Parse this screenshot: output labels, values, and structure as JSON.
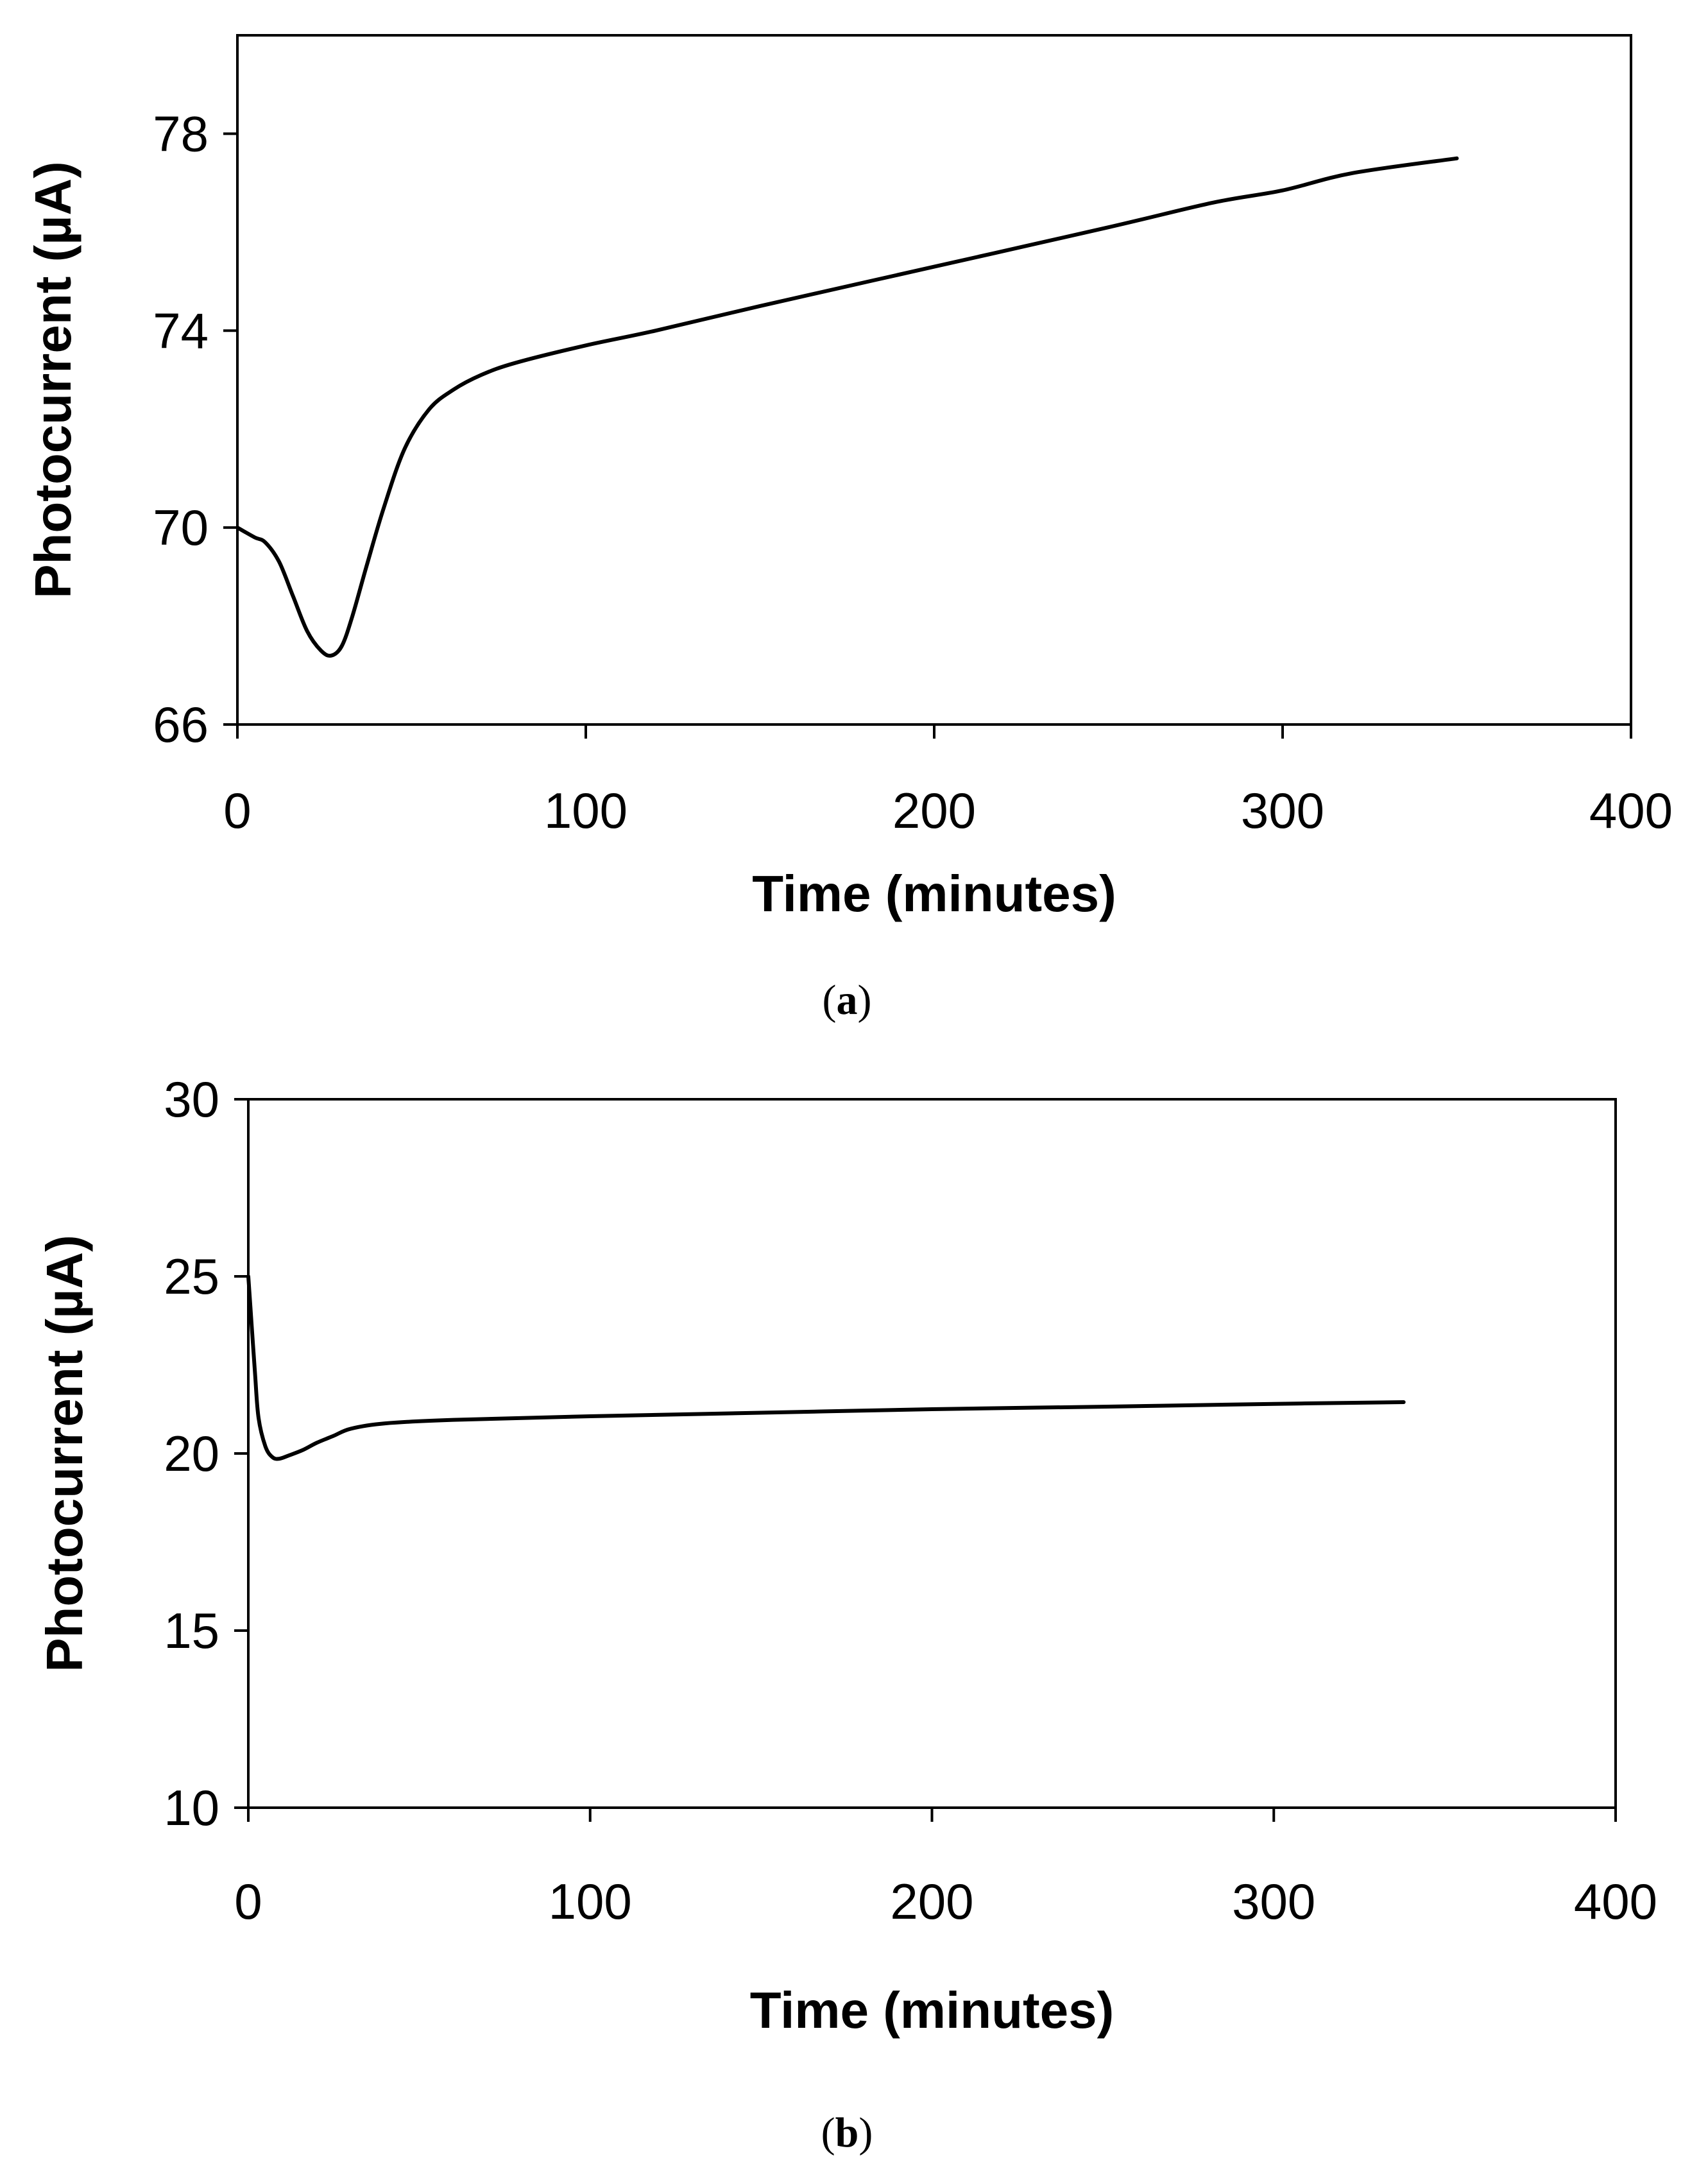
{
  "chart_data": [
    {
      "type": "line",
      "panel": "a",
      "title": "",
      "xlabel": "Time (minutes)",
      "ylabel": "Photocurrent (µA)",
      "xlim": [
        0,
        400
      ],
      "ylim": [
        66,
        80
      ],
      "x_ticks": [
        0,
        100,
        200,
        300,
        400
      ],
      "y_ticks": [
        66,
        70,
        74,
        78
      ],
      "grid": false,
      "series": [
        {
          "name": "photocurrent",
          "x": [
            0,
            5,
            8,
            12,
            16,
            20,
            24,
            27,
            30,
            33,
            37,
            42,
            48,
            55,
            62,
            70,
            80,
            100,
            120,
            150,
            200,
            250,
            280,
            300,
            320,
            350
          ],
          "y": [
            70.0,
            69.8,
            69.7,
            69.3,
            68.6,
            67.9,
            67.5,
            67.4,
            67.6,
            68.2,
            69.2,
            70.4,
            71.6,
            72.4,
            72.8,
            73.1,
            73.35,
            73.7,
            74.0,
            74.5,
            75.3,
            76.1,
            76.6,
            76.85,
            77.2,
            77.5
          ]
        }
      ]
    },
    {
      "type": "line",
      "panel": "b",
      "title": "",
      "xlabel": "Time (minutes)",
      "ylabel": "Photocurrent (µA)",
      "xlim": [
        0,
        400
      ],
      "ylim": [
        10,
        30
      ],
      "x_ticks": [
        0,
        100,
        200,
        300,
        400
      ],
      "y_ticks": [
        10,
        15,
        20,
        25,
        30
      ],
      "grid": false,
      "series": [
        {
          "name": "photocurrent",
          "x": [
            0,
            1,
            2,
            3,
            5,
            7,
            9,
            12,
            16,
            20,
            25,
            30,
            40,
            60,
            100,
            150,
            200,
            250,
            300,
            338
          ],
          "y": [
            25.0,
            23.6,
            22.2,
            21.0,
            20.2,
            19.9,
            19.85,
            19.95,
            20.1,
            20.3,
            20.5,
            20.7,
            20.85,
            20.95,
            21.05,
            21.15,
            21.25,
            21.32,
            21.4,
            21.45
          ]
        }
      ]
    }
  ],
  "captions": {
    "a": {
      "open": "(",
      "letter": "a",
      "close": ")"
    },
    "b": {
      "open": "(",
      "letter": "b",
      "close": ")"
    }
  }
}
